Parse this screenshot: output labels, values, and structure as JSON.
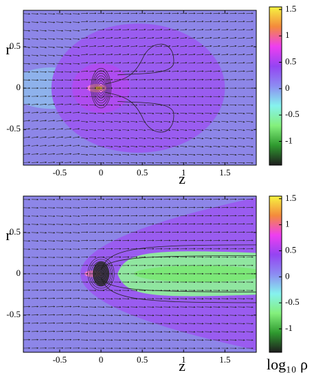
{
  "chart_data": [
    {
      "type": "heatmap",
      "xlabel": "z",
      "ylabel": "r",
      "xlim": [
        -0.94,
        1.88
      ],
      "ylim": [
        -0.93,
        0.94
      ],
      "xticks": [
        -0.5,
        0,
        0.5,
        1,
        1.5
      ],
      "yticks": [
        -0.5,
        0,
        0.5
      ],
      "clim": [
        -1.45,
        1.55
      ],
      "cticks": [
        -1,
        -0.5,
        0,
        0.5,
        1,
        1.5
      ],
      "colormap": [
        "#1e1e1e",
        "#2f9a2f",
        "#84f07c",
        "#86f2ee",
        "#8c8cf2",
        "#9444f2",
        "#ee3ef0",
        "#f48a3c",
        "#f6f440"
      ]
    },
    {
      "type": "heatmap",
      "xlabel": "z",
      "ylabel": "r",
      "xlim": [
        -0.94,
        1.88
      ],
      "ylim": [
        -0.95,
        0.94
      ],
      "xticks": [
        -0.5,
        0,
        0.5,
        1,
        1.5
      ],
      "yticks": [
        -0.5,
        0,
        0.5
      ],
      "clim": [
        -1.45,
        1.55
      ],
      "cticks": [
        -1,
        -0.5,
        0,
        0.5,
        1,
        1.5
      ],
      "colormap": [
        "#1e1e1e",
        "#2f9a2f",
        "#84f07c",
        "#86f2ee",
        "#8c8cf2",
        "#9444f2",
        "#ee3ef0",
        "#f48a3c",
        "#f6f440"
      ],
      "colorbar_label": "log₁₀ ρ"
    }
  ]
}
